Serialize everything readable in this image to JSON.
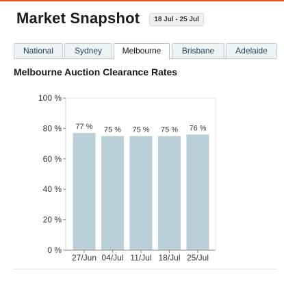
{
  "header": {
    "title": "Market Snapshot",
    "date_range": "18 Jul - 25 Jul"
  },
  "tabs": [
    {
      "label": "National"
    },
    {
      "label": "Sydney"
    },
    {
      "label": "Melbourne",
      "active": true
    },
    {
      "label": "Brisbane"
    },
    {
      "label": "Adelaide"
    }
  ],
  "section": {
    "title": "Melbourne Auction Clearance Rates"
  },
  "colors": {
    "accent_line": "#e9502a",
    "bar": "#b9d0d8"
  },
  "chart_data": {
    "type": "bar",
    "title": "",
    "xlabel": "",
    "ylabel": "",
    "categories": [
      "27/Jun",
      "04/Jul",
      "11/Jul",
      "18/Jul",
      "25/Jul"
    ],
    "values": [
      77,
      75,
      75,
      75,
      76
    ],
    "data_labels": [
      "77 %",
      "75 %",
      "75 %",
      "75 %",
      "76 %"
    ],
    "yticks": [
      "0 %",
      "20 %",
      "40 %",
      "60 %",
      "80 %",
      "100 %"
    ],
    "ylim": [
      0,
      100
    ],
    "grid": false,
    "legend": "none"
  }
}
